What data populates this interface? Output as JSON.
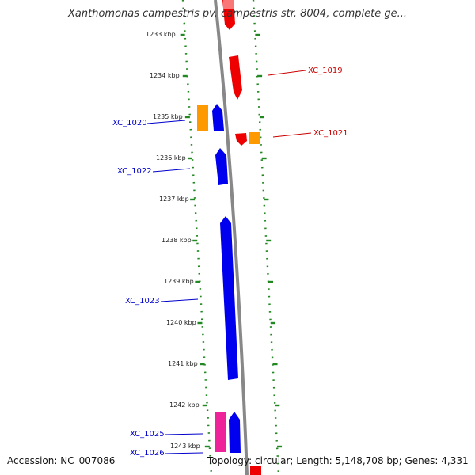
{
  "title": "Xanthomonas campestris pv. campestris str. 8004, complete ge...",
  "footer": {
    "accession": "Accession: NC_007086",
    "summary": "Topology: circular; Length: 5,148,708 bp; Genes: 4,331"
  },
  "colors": {
    "forward_strand": "#0000ee",
    "reverse_strand": "#ee0000",
    "orange": "#ff9900",
    "pink": "#ee2299",
    "backbone": "#888888",
    "ticks": "#228822",
    "label_blue": "#0000cc",
    "label_red": "#cc0000"
  },
  "ticks": [
    {
      "label": "1233 kbp"
    },
    {
      "label": "1234 kbp"
    },
    {
      "label": "1235 kbp"
    },
    {
      "label": "1236 kbp"
    },
    {
      "label": "1237 kbp"
    },
    {
      "label": "1238 kbp"
    },
    {
      "label": "1239 kbp"
    },
    {
      "label": "1240 kbp"
    },
    {
      "label": "1241 kbp"
    },
    {
      "label": "1242 kbp"
    },
    {
      "label": "1243 kbp"
    }
  ],
  "gene_labels": [
    {
      "name": "XC_1019",
      "color": "red"
    },
    {
      "name": "XC_1020",
      "color": "blue"
    },
    {
      "name": "XC_1021",
      "color": "red"
    },
    {
      "name": "XC_1022",
      "color": "blue"
    },
    {
      "name": "XC_1023",
      "color": "blue"
    },
    {
      "name": "XC_1025",
      "color": "blue"
    },
    {
      "name": "XC_1026",
      "color": "blue"
    }
  ]
}
